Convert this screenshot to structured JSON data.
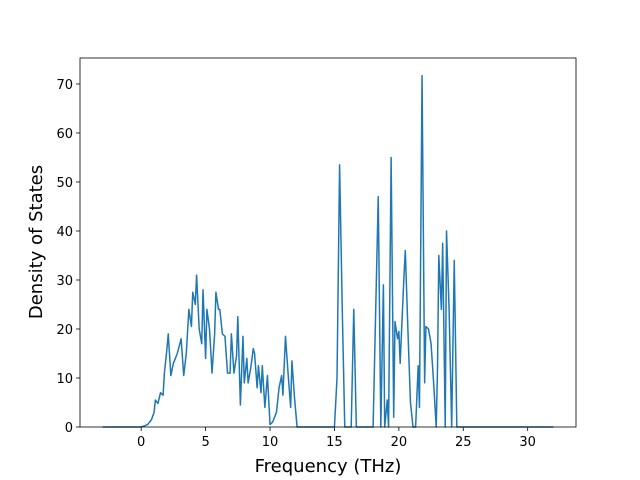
{
  "chart_data": {
    "type": "line",
    "xlabel": "Frequency (THz)",
    "ylabel": "Density of States",
    "color": "#1f77b4",
    "x": [
      -3,
      0,
      0.2,
      0.5,
      0.8,
      1.0,
      1.1,
      1.3,
      1.5,
      1.7,
      1.8,
      2.0,
      2.1,
      2.3,
      2.5,
      2.8,
      3.0,
      3.1,
      3.3,
      3.5,
      3.7,
      3.9,
      4.0,
      4.2,
      4.3,
      4.5,
      4.7,
      4.8,
      5.0,
      5.1,
      5.3,
      5.5,
      5.7,
      5.8,
      6.0,
      6.1,
      6.3,
      6.5,
      6.7,
      6.9,
      7.0,
      7.2,
      7.4,
      7.5,
      7.7,
      7.9,
      8.0,
      8.2,
      8.3,
      8.5,
      8.7,
      8.8,
      9.0,
      9.1,
      9.3,
      9.4,
      9.6,
      9.8,
      10.0,
      10.2,
      10.5,
      10.7,
      10.9,
      11.0,
      11.2,
      11.4,
      11.6,
      11.7,
      11.9,
      12.1,
      15.0,
      15.2,
      15.4,
      15.6,
      15.8,
      16.3,
      16.5,
      16.7,
      18.0,
      18.4,
      18.6,
      18.8,
      18.9,
      19.1,
      19.2,
      19.4,
      19.6,
      19.7,
      19.9,
      20.0,
      20.1,
      20.4,
      20.5,
      20.7,
      20.9,
      21.1,
      21.3,
      21.5,
      21.6,
      21.8,
      22.0,
      22.1,
      22.3,
      22.5,
      22.7,
      22.9,
      23.0,
      23.1,
      23.3,
      23.4,
      23.6,
      23.7,
      23.9,
      24.1,
      24.3,
      24.5,
      24.7,
      32
    ],
    "values": [
      0,
      0,
      0.2,
      0.5,
      1.5,
      3,
      5.5,
      4.8,
      7,
      6.5,
      11,
      16,
      19,
      10.5,
      13,
      15,
      17,
      18,
      10.5,
      15,
      24,
      20.5,
      27.5,
      25,
      31,
      20,
      17,
      28,
      14,
      24,
      20,
      11,
      19,
      27.5,
      24,
      24,
      19,
      18.5,
      11,
      11,
      19,
      11,
      14.5,
      22.5,
      4.5,
      18.5,
      9,
      14,
      9,
      12,
      16,
      15,
      8,
      12.5,
      7,
      12.5,
      4,
      10.5,
      0.5,
      1,
      3,
      8,
      10.5,
      6.5,
      18.5,
      11,
      4,
      13.5,
      6,
      0,
      0,
      10,
      53.5,
      25,
      0,
      0,
      24,
      0,
      0,
      47,
      0,
      29,
      0,
      5.5,
      0,
      55,
      2,
      21.5,
      18,
      19.5,
      13,
      31,
      36,
      20,
      5,
      0,
      0,
      12.5,
      4,
      71.7,
      9,
      20.5,
      20,
      17,
      9,
      0,
      12,
      35,
      24,
      37.5,
      0,
      40,
      24,
      0,
      34,
      0,
      0,
      0
    ],
    "xlim": [
      -4.75,
      33.75
    ],
    "ylim": [
      0,
      75.3
    ],
    "xticks": [
      0,
      5,
      10,
      15,
      20,
      25,
      30
    ],
    "yticks": [
      0,
      10,
      20,
      30,
      40,
      50,
      60,
      70
    ]
  }
}
